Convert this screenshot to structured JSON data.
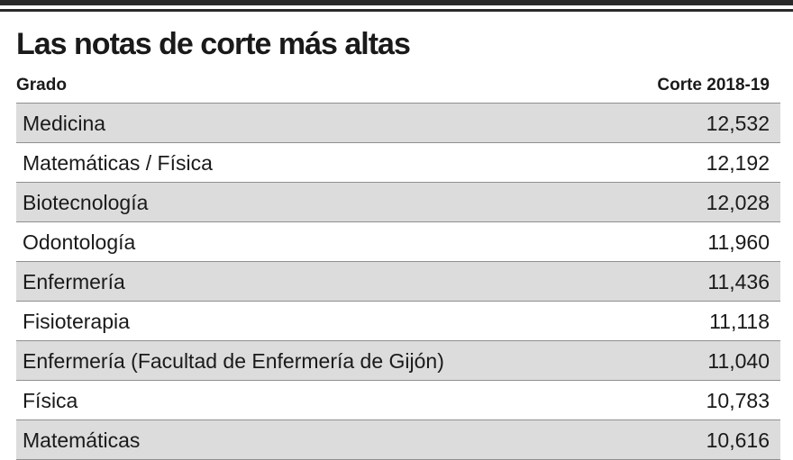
{
  "title": "Las notas de corte más altas",
  "columns": {
    "grado": "Grado",
    "corte": "Corte 2018-19"
  },
  "rows": [
    {
      "grado": "Medicina",
      "corte": "12,532"
    },
    {
      "grado": "Matemáticas / Física",
      "corte": "12,192"
    },
    {
      "grado": "Biotecnología",
      "corte": "12,028"
    },
    {
      "grado": "Odontología",
      "corte": "11,960"
    },
    {
      "grado": "Enfermería",
      "corte": "11,436"
    },
    {
      "grado": "Fisioterapia",
      "corte": "11,118"
    },
    {
      "grado": "Enfermería (Facultad de Enfermería de Gijón)",
      "corte": "11,040"
    },
    {
      "grado": "Física",
      "corte": "10,783"
    },
    {
      "grado": "Matemáticas",
      "corte": "10,616"
    }
  ],
  "colors": {
    "shaded_row": "#dcdcdc",
    "rule": "#2a2a2a",
    "row_border": "#8f8f8f"
  }
}
